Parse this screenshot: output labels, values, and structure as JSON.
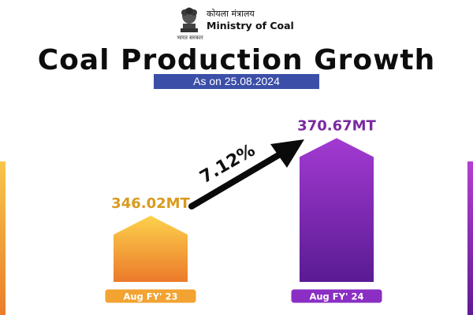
{
  "header": {
    "ministry_hindi": "कोयला मंत्रालय",
    "ministry_name": "Ministry of Coal",
    "emblem_caption": "भारत सरकार",
    "emblem_icon": "national-emblem-icon"
  },
  "title": "Coal Production Growth",
  "subtitle": "As on 25.08.2024",
  "growth_label": "7.12%",
  "colors": {
    "accent_orange": "#f2a332",
    "accent_purple": "#8a2ec4",
    "subtitle_band": "#3c4fa8",
    "arrow": "#0a0a0a"
  },
  "chart_data": {
    "type": "bar",
    "categories": [
      "Aug FY' 23",
      "Aug FY' 24"
    ],
    "values": [
      346.02,
      370.67
    ],
    "data_labels": [
      "346.02MT",
      "370.67MT"
    ],
    "title": "Coal Production Growth",
    "xlabel": "",
    "ylabel": "",
    "grid": false
  }
}
